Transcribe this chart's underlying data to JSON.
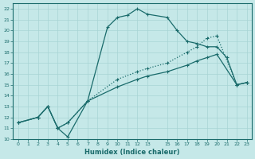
{
  "xlabel": "Humidex (Indice chaleur)",
  "xlim": [
    -0.5,
    23.5
  ],
  "ylim": [
    10,
    22.5
  ],
  "bg_color": "#c5e8e8",
  "line_color": "#1a6b6b",
  "grid_color": "#a8d4d4",
  "xticks": [
    0,
    1,
    2,
    3,
    4,
    5,
    6,
    7,
    8,
    9,
    10,
    11,
    12,
    13,
    15,
    16,
    17,
    18,
    19,
    20,
    21,
    22,
    23
  ],
  "yticks": [
    10,
    11,
    12,
    13,
    14,
    15,
    16,
    17,
    18,
    19,
    20,
    21,
    22
  ],
  "line1_x": [
    0,
    2,
    3,
    4,
    5,
    7,
    9,
    10,
    11,
    12,
    13,
    15,
    16,
    17,
    18,
    19,
    20,
    21,
    22,
    23
  ],
  "line1_y": [
    11.5,
    12.0,
    13.0,
    11.0,
    10.2,
    13.5,
    20.3,
    21.2,
    21.4,
    22.0,
    21.5,
    21.2,
    20.0,
    19.0,
    18.8,
    18.5,
    18.5,
    17.5,
    15.0,
    15.2
  ],
  "line2_x": [
    0,
    2,
    3,
    4,
    5,
    7,
    10,
    12,
    13,
    15,
    17,
    18,
    19,
    20,
    22,
    23
  ],
  "line2_y": [
    11.5,
    12.0,
    13.0,
    11.0,
    11.5,
    13.5,
    15.5,
    16.2,
    16.5,
    17.0,
    18.0,
    18.5,
    19.3,
    19.5,
    15.0,
    15.2
  ],
  "line3_x": [
    0,
    2,
    3,
    4,
    5,
    7,
    10,
    12,
    13,
    15,
    17,
    18,
    19,
    20,
    22,
    23
  ],
  "line3_y": [
    11.5,
    12.0,
    13.0,
    11.0,
    11.5,
    13.5,
    14.8,
    15.5,
    15.8,
    16.2,
    16.8,
    17.2,
    17.5,
    17.8,
    15.0,
    15.2
  ]
}
